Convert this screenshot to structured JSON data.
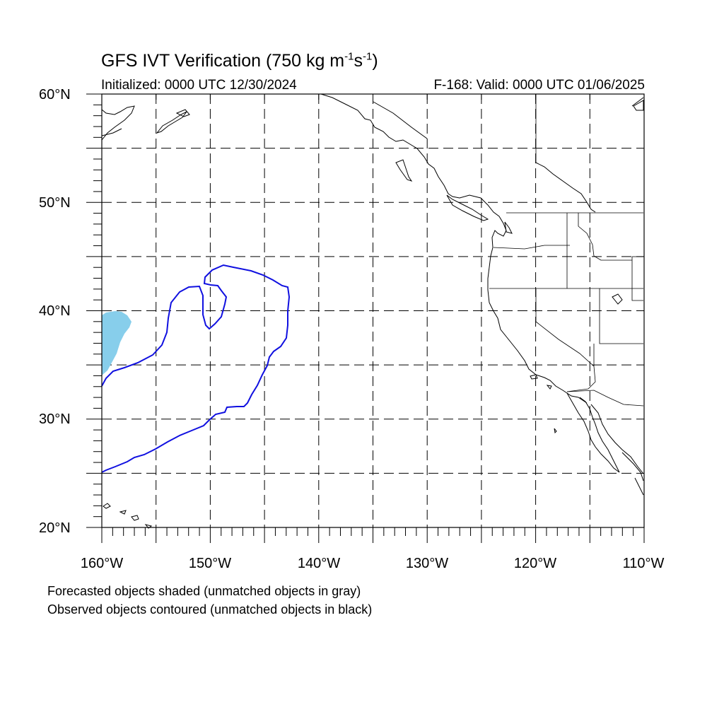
{
  "title": {
    "main": "GFS IVT Verification (750 kg m",
    "sup1": "-1",
    "mid": "s",
    "sup2": "-1",
    "end": ")"
  },
  "subtitle_left": "Initialized: 0000 UTC 12/30/2024",
  "subtitle_right": "F-168: Valid: 0000 UTC 01/06/2025",
  "lat_labels": [
    "60°N",
    "50°N",
    "40°N",
    "30°N",
    "20°N"
  ],
  "lon_labels": [
    "160°W",
    "150°W",
    "140°W",
    "130°W",
    "120°W",
    "110°W"
  ],
  "captions": [
    "Forecasted objects shaded (unmatched objects in gray)",
    "Observed objects contoured (unmatched objects in black)"
  ],
  "map": {
    "lon_range": [
      -160,
      -110
    ],
    "lat_range": [
      20,
      60
    ],
    "grid_spacing_deg": 5,
    "grid_style": "dashed",
    "colors": {
      "forecast_object": "#87ceeb",
      "observed_contour": "#1010e0",
      "coastline": "#000000",
      "grid": "#000000"
    }
  }
}
